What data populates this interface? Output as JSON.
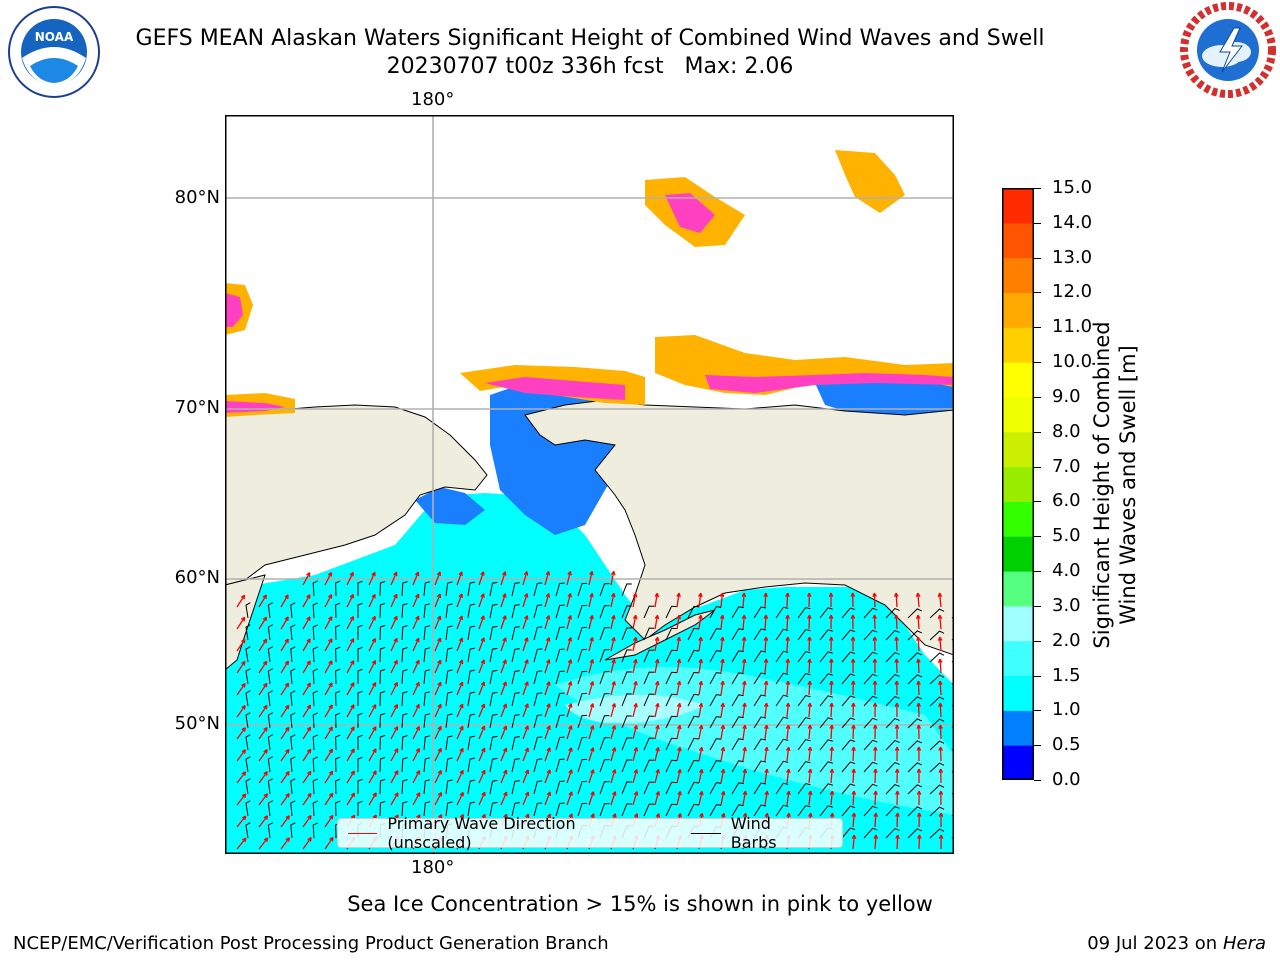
{
  "title": {
    "line1": "GEFS MEAN Alaskan Waters Significant Height of Combined Wind Waves and Swell",
    "line2": "20230707 t00z 336h fcst   Max: 2.06"
  },
  "logos": {
    "left": {
      "icon": "noaa-logo-icon",
      "text": "NOAA"
    },
    "right": {
      "icon": "nws-logo-icon"
    }
  },
  "map": {
    "lon_labels": {
      "top": "180°",
      "bottom": "180°"
    },
    "lat_labels": [
      "80°N",
      "70°N",
      "60°N",
      "50°N"
    ],
    "colors": {
      "land": "#efedde",
      "ocean": "#00ffff",
      "grid": "#b0b0b0"
    }
  },
  "legend": {
    "wave_label": "Primary Wave Direction (unscaled)",
    "wave_color": "#ff0000",
    "wind_label": "Wind Barbs",
    "wind_color": "#000000"
  },
  "colorbar": {
    "title_line1": "Significant Height of Combined",
    "title_line2": "Wind Waves and Swell [m]",
    "ticks": [
      "15.0",
      "14.0",
      "13.0",
      "12.0",
      "11.0",
      "10.0",
      "9.0",
      "8.0",
      "7.0",
      "6.0",
      "5.0",
      "4.0",
      "3.0",
      "2.0",
      "1.5",
      "1.0",
      "0.5",
      "0.0"
    ],
    "colors_bottom_to_top": [
      "#0000ff",
      "#0080ff",
      "#00ffff",
      "#40ffff",
      "#a0ffff",
      "#55ff80",
      "#00d000",
      "#33ff00",
      "#99ee00",
      "#ccee00",
      "#eeff00",
      "#ffff00",
      "#ffd000",
      "#ffaa00",
      "#ff8000",
      "#ff5500",
      "#ff2a00",
      "#ff0000"
    ]
  },
  "note": "Sea Ice Concentration > 15% is shown in pink to yellow",
  "footer": {
    "left": "NCEP/EMC/Verification Post Processing Product Generation Branch",
    "date": "09 Jul 2023 on ",
    "host": "Hera"
  }
}
